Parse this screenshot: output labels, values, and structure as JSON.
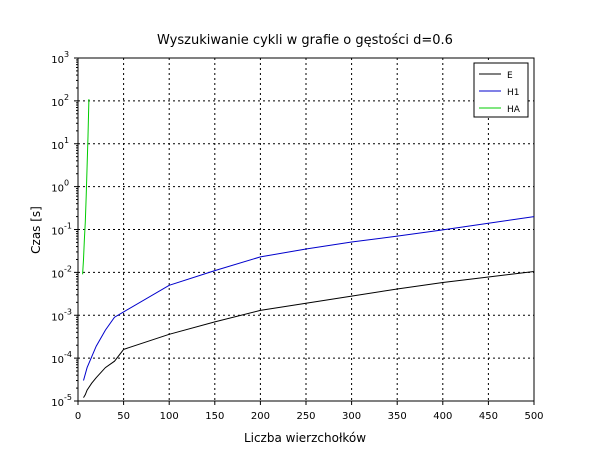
{
  "chart_data": {
    "type": "line",
    "title": "Wyszukiwanie cykli w grafie o gęstości d=0.6",
    "xlabel": "Liczba wierzchołków",
    "ylabel": "Czas [s]",
    "xlim": [
      0,
      500
    ],
    "ylim": [
      1e-05,
      1000
    ],
    "yscale": "log",
    "grid": true,
    "legend_position": "top-right",
    "x_ticks": [
      0,
      50,
      100,
      150,
      200,
      250,
      300,
      350,
      400,
      450,
      500
    ],
    "y_ticks": [
      {
        "value": 1e-05,
        "base": "10",
        "exp": "-5"
      },
      {
        "value": 0.0001,
        "base": "10",
        "exp": "-4"
      },
      {
        "value": 0.001,
        "base": "10",
        "exp": "-3"
      },
      {
        "value": 0.01,
        "base": "10",
        "exp": "-2"
      },
      {
        "value": 0.1,
        "base": "10",
        "exp": "-1"
      },
      {
        "value": 1,
        "base": "10",
        "exp": "0"
      },
      {
        "value": 10,
        "base": "10",
        "exp": "1"
      },
      {
        "value": 100,
        "base": "10",
        "exp": "2"
      },
      {
        "value": 1000,
        "base": "10",
        "exp": "3"
      }
    ],
    "series": [
      {
        "name": "E",
        "color": "#000000",
        "x": [
          6,
          8,
          10,
          15,
          20,
          30,
          40,
          50,
          100,
          150,
          200,
          250,
          300,
          350,
          400,
          450,
          500
        ],
        "y": [
          1.2e-05,
          1.4e-05,
          1.8e-05,
          2.6e-05,
          3.5e-05,
          6e-05,
          8.5e-05,
          0.00016,
          0.00036,
          0.0007,
          0.0013,
          0.0019,
          0.0028,
          0.0041,
          0.0058,
          0.0078,
          0.0105
        ]
      },
      {
        "name": "H1",
        "color": "#0000cc",
        "x": [
          6,
          10,
          20,
          30,
          40,
          50,
          100,
          150,
          200,
          250,
          300,
          350,
          400,
          450,
          500
        ],
        "y": [
          3e-05,
          6e-05,
          0.00019,
          0.00045,
          0.0009,
          0.0012,
          0.005,
          0.011,
          0.023,
          0.035,
          0.051,
          0.07,
          0.098,
          0.14,
          0.2
        ]
      },
      {
        "name": "HA",
        "color": "#00cc00",
        "x": [
          5,
          6,
          7,
          8,
          9,
          10,
          11,
          12
        ],
        "y": [
          0.009,
          0.02,
          0.06,
          0.15,
          0.6,
          3,
          15,
          110
        ]
      }
    ]
  }
}
